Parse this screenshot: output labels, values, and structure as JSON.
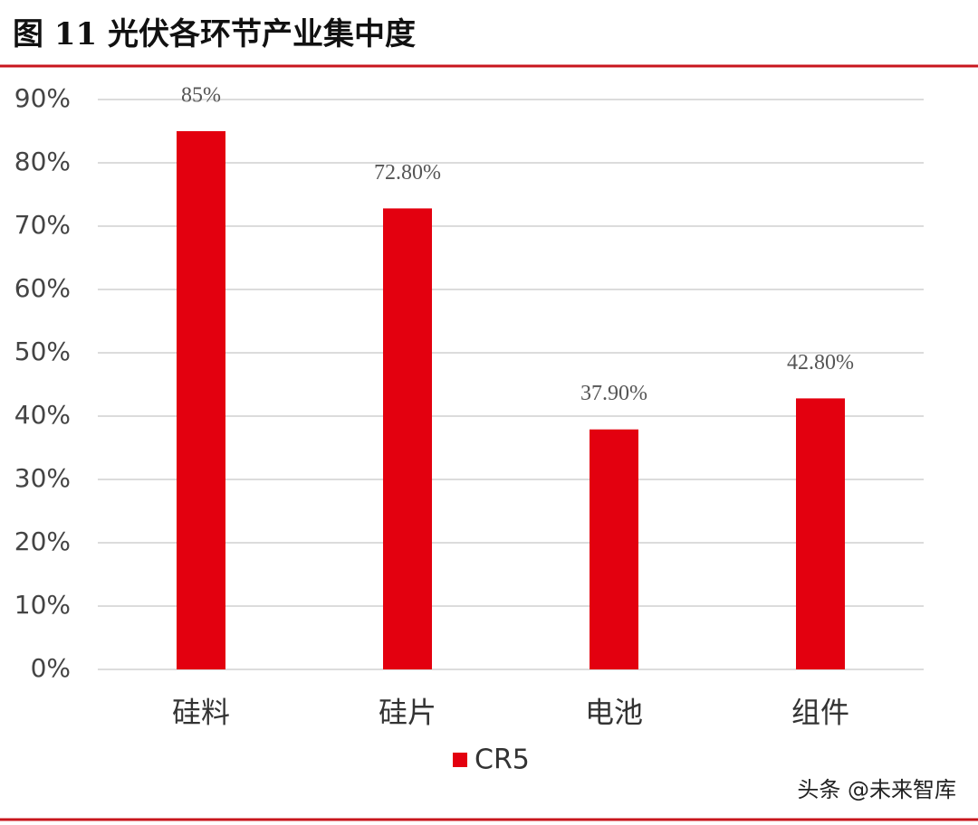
{
  "chart_data": {
    "type": "bar",
    "title": "图 11 光伏各环节产业集中度",
    "categories": [
      "硅料",
      "硅片",
      "电池",
      "组件"
    ],
    "series": [
      {
        "name": "CR5",
        "color": "#e3000f",
        "values": [
          85,
          72.8,
          37.9,
          42.8
        ],
        "value_labels": [
          "85%",
          "72.80%",
          "37.90%",
          "42.80%"
        ]
      }
    ],
    "ylim": [
      0,
      90
    ],
    "yticks": [
      {
        "value": 0,
        "label": "0%"
      },
      {
        "value": 10,
        "label": "10%"
      },
      {
        "value": 20,
        "label": "20%"
      },
      {
        "value": 30,
        "label": "30%"
      },
      {
        "value": 40,
        "label": "40%"
      },
      {
        "value": 50,
        "label": "50%"
      },
      {
        "value": 60,
        "label": "60%"
      },
      {
        "value": 70,
        "label": "70%"
      },
      {
        "value": 80,
        "label": "80%"
      },
      {
        "value": 90,
        "label": "90%"
      }
    ],
    "grid": true,
    "watermark": "头条 @未来智库"
  }
}
